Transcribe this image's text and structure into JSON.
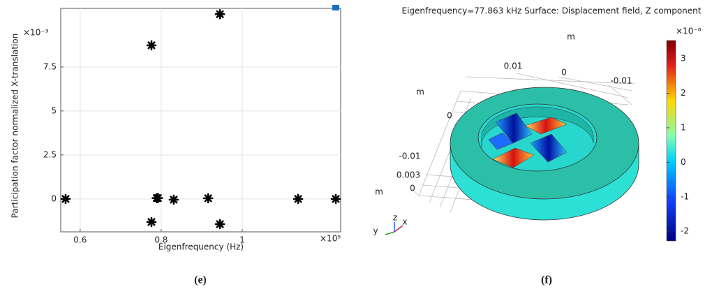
{
  "chart_data": [
    {
      "type": "scatter",
      "label": "(e)",
      "x_label": "Eigenfrequency (Hz)",
      "y_label": "Participation factor normalized X-translation",
      "x_exponent": "×10⁵",
      "y_exponent": "×10⁻³",
      "x": [
        0.564,
        0.776,
        0.945,
        0.776,
        0.789,
        0.792,
        0.831,
        0.916,
        0.945,
        1.138,
        1.231
      ],
      "values": [
        0,
        8.73,
        10.5,
        -1.31,
        0.05,
        0.05,
        -0.04,
        0.04,
        -1.43,
        0,
        0
      ],
      "color": "#000000",
      "xlim": [
        0.552,
        1.243
      ],
      "ylim": [
        -1.87,
        10.83
      ],
      "xticks": [
        0.6,
        0.8,
        1
      ],
      "yticks": [
        0,
        2.5,
        5,
        7.5
      ],
      "grid": true
    },
    {
      "type": "surface",
      "label": "(f)",
      "title": "Eigenfrequency=77.863 kHz Surface: Displacement field, Z component",
      "colorbar_exponent": "×10⁻⁸",
      "colorbar_lim": [
        -2.28,
        3.53
      ],
      "colorbar_ticks": [
        3,
        2,
        1,
        0,
        -1,
        -2
      ],
      "axis_labels": [
        "m",
        "0.01",
        "0",
        "-0.01",
        "m",
        "0",
        "-0.01",
        "0.003",
        "m",
        "0"
      ],
      "triad": [
        "z",
        "y",
        "x"
      ]
    }
  ]
}
